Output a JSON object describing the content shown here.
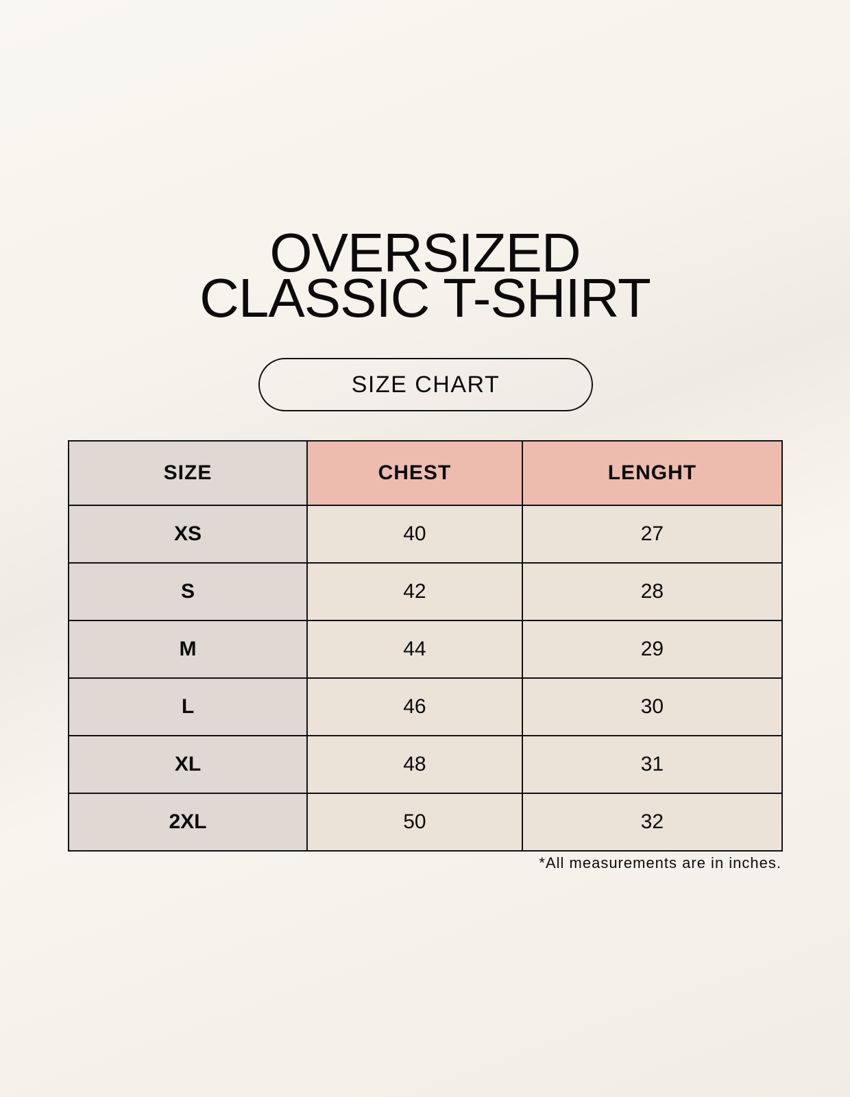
{
  "title": {
    "line1": "OVERSIZED",
    "line2": "CLASSIC T-SHIRT"
  },
  "badge": "SIZE CHART",
  "table": {
    "headers": [
      "SIZE",
      "CHEST",
      "LENGHT"
    ],
    "rows": [
      [
        "XS",
        "40",
        "27"
      ],
      [
        "S",
        "42",
        "28"
      ],
      [
        "M",
        "44",
        "29"
      ],
      [
        "L",
        "46",
        "30"
      ],
      [
        "XL",
        "48",
        "31"
      ],
      [
        "2XL",
        "50",
        "32"
      ]
    ]
  },
  "footnote": "*All measurements are in inches.",
  "colors": {
    "size_column": "#e0d8d2",
    "header_accent": "#edbcae",
    "value_cells": "#ebe3d8"
  }
}
